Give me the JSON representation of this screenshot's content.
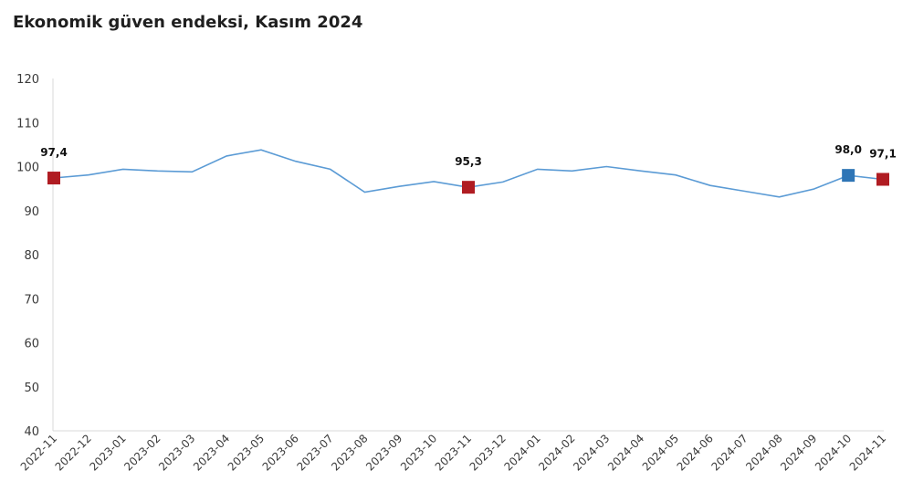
{
  "chart_data": {
    "type": "line",
    "title": "Ekonomik güven endeksi, Kasım 2024",
    "xlabel": "",
    "ylabel": "",
    "ylim": [
      40,
      120
    ],
    "yticks": [
      40,
      50,
      60,
      70,
      80,
      90,
      100,
      110,
      120
    ],
    "grid": false,
    "categories": [
      "2022-11",
      "2022-12",
      "2023-01",
      "2023-02",
      "2023-03",
      "2023-04",
      "2023-05",
      "2023-06",
      "2023-07",
      "2023-08",
      "2023-09",
      "2023-10",
      "2023-11",
      "2023-12",
      "2024-01",
      "2024-02",
      "2024-03",
      "2024-04",
      "2024-05",
      "2024-06",
      "2024-07",
      "2024-08",
      "2024-09",
      "2024-10",
      "2024-11"
    ],
    "series": [
      {
        "name": "",
        "values": [
          97.4,
          98.1,
          99.4,
          99.0,
          98.8,
          102.4,
          103.8,
          101.2,
          99.4,
          94.2,
          95.5,
          96.6,
          95.3,
          96.5,
          99.4,
          99.0,
          100.0,
          99.0,
          98.1,
          95.7,
          94.4,
          93.1,
          94.9,
          98.0,
          97.1
        ],
        "color": "#5b9bd5"
      }
    ],
    "highlights": [
      {
        "index": 0,
        "label": "97,4",
        "color": "#b01c22"
      },
      {
        "index": 12,
        "label": "95,3",
        "color": "#b01c22"
      },
      {
        "index": 23,
        "label": "98,0",
        "color": "#2e75b6"
      },
      {
        "index": 24,
        "label": "97,1",
        "color": "#b01c22"
      }
    ]
  }
}
